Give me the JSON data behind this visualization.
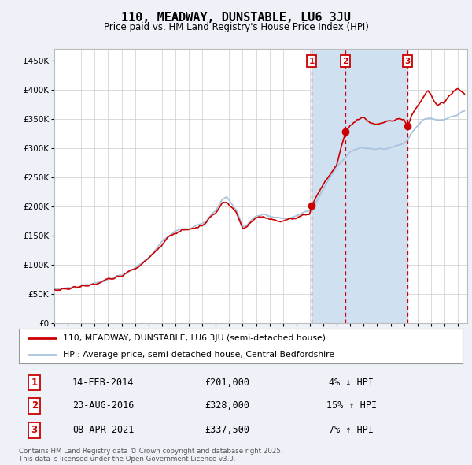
{
  "title": "110, MEADWAY, DUNSTABLE, LU6 3JU",
  "subtitle": "Price paid vs. HM Land Registry's House Price Index (HPI)",
  "legend_line1": "110, MEADWAY, DUNSTABLE, LU6 3JU (semi-detached house)",
  "legend_line2": "HPI: Average price, semi-detached house, Central Bedfordshire",
  "transactions": [
    {
      "num": 1,
      "date": "14-FEB-2014",
      "price": 201000,
      "pct": "4%",
      "dir": "↓",
      "date_decimal": 2014.12
    },
    {
      "num": 2,
      "date": "23-AUG-2016",
      "price": 328000,
      "pct": "15%",
      "dir": "↑",
      "date_decimal": 2016.65
    },
    {
      "num": 3,
      "date": "08-APR-2021",
      "price": 337500,
      "pct": "7%",
      "dir": "↑",
      "date_decimal": 2021.27
    }
  ],
  "footnote1": "Contains HM Land Registry data © Crown copyright and database right 2025.",
  "footnote2": "This data is licensed under the Open Government Licence v3.0.",
  "hpi_color": "#aac4e0",
  "price_color": "#cc0000",
  "bg_color": "#eef2f8",
  "plot_bg": "#ffffff",
  "shade_color": "#cfe0f0",
  "grid_color": "#cccccc",
  "ylim": [
    0,
    470000
  ],
  "yticks": [
    0,
    50000,
    100000,
    150000,
    200000,
    250000,
    300000,
    350000,
    400000,
    450000
  ],
  "xstart": 1995.0,
  "xend": 2025.7
}
